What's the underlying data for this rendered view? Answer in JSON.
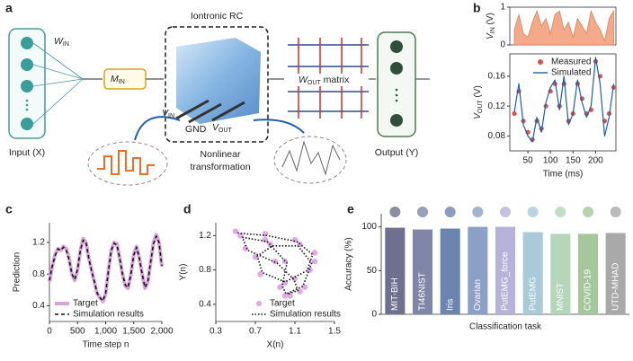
{
  "panel_labels": [
    "a",
    "b",
    "c",
    "d",
    "e"
  ],
  "diagram": {
    "w_in": [
      "W",
      "IN"
    ],
    "m_in": [
      "M",
      "IN"
    ],
    "reservoir_title": "Iontronic RC",
    "w_out": [
      "W",
      "OUT",
      " matrix"
    ],
    "v_in": [
      "V",
      "IN"
    ],
    "gnd": "GND",
    "v_out": [
      "V",
      "OUT"
    ],
    "transformation": [
      "Nonlinear",
      "transformation"
    ],
    "input_label": "Input (X)",
    "output_label": "Output (Y)"
  },
  "chart_data": [
    {
      "type": "area",
      "y_label": [
        "V",
        "IN",
        " (V)"
      ],
      "x": [
        20,
        30,
        40,
        50,
        60,
        70,
        80,
        90,
        100,
        110,
        120,
        130,
        140,
        150,
        160,
        170,
        180,
        190,
        200,
        210,
        220,
        230,
        240
      ],
      "values": [
        0.4,
        0.8,
        0.3,
        0.2,
        0.6,
        0.9,
        0.5,
        0.7,
        0.3,
        0.8,
        0.9,
        0.4,
        0.6,
        0.2,
        0.7,
        0.5,
        0.3,
        0.9,
        0.6,
        0.4,
        0.1,
        0.7,
        0.9
      ],
      "color": "#f3a98a",
      "xlim": [
        10,
        245
      ],
      "ylim": [
        0,
        1
      ],
      "yticks": [
        0,
        1
      ],
      "frame": true
    },
    {
      "type": "line",
      "x_label": "Time (ms)",
      "y_label": [
        "V",
        "OUT",
        " (V)"
      ],
      "x": [
        20,
        30,
        40,
        50,
        60,
        70,
        80,
        90,
        100,
        110,
        120,
        130,
        140,
        150,
        160,
        170,
        180,
        190,
        200,
        210,
        220,
        230,
        240
      ],
      "series": [
        {
          "name": "Measured",
          "color": "#d9534f",
          "mode": "markers",
          "values": [
            0.11,
            0.14,
            0.1,
            0.085,
            0.075,
            0.1,
            0.09,
            0.12,
            0.14,
            0.15,
            0.12,
            0.15,
            0.1,
            0.11,
            0.15,
            0.13,
            0.11,
            0.115,
            0.18,
            0.16,
            0.1,
            0.11,
            0.145
          ]
        },
        {
          "name": "Simulated",
          "color": "#1f5fa8",
          "mode": "line",
          "values": [
            0.112,
            0.15,
            0.095,
            0.08,
            0.072,
            0.105,
            0.085,
            0.125,
            0.145,
            0.155,
            0.115,
            0.16,
            0.095,
            0.11,
            0.155,
            0.125,
            0.105,
            0.12,
            0.185,
            0.15,
            0.08,
            0.105,
            0.15
          ]
        }
      ],
      "xlim": [
        10,
        245
      ],
      "ylim": [
        0.06,
        0.19
      ],
      "xticks": [
        50,
        100,
        150,
        200
      ],
      "yticks": [
        0.08,
        0.12,
        0.16
      ],
      "frame": true,
      "legend": "upper right"
    },
    {
      "type": "line",
      "x_label": "Time step n",
      "y_label": "Prediction",
      "x": [
        0,
        50,
        100,
        150,
        200,
        250,
        300,
        350,
        400,
        450,
        500,
        550,
        600,
        650,
        700,
        750,
        800,
        850,
        900,
        950,
        1000,
        1050,
        1100,
        1150,
        1200,
        1250,
        1300,
        1350,
        1400,
        1450,
        1500,
        1550,
        1600,
        1650,
        1700,
        1750,
        1800,
        1850,
        1900,
        1950,
        2000
      ],
      "series": [
        {
          "name": "Target",
          "color": "#d9a3dc",
          "mode": "line",
          "width": 4,
          "values": [
            0.7,
            0.9,
            1.05,
            1.12,
            1.1,
            1.15,
            1.12,
            1.0,
            0.8,
            0.72,
            0.85,
            1.1,
            1.25,
            1.2,
            1.0,
            0.85,
            0.7,
            0.55,
            0.5,
            0.45,
            0.55,
            0.85,
            1.1,
            1.2,
            1.18,
            1.0,
            0.8,
            0.65,
            0.62,
            0.8,
            1.05,
            1.15,
            1.0,
            0.8,
            0.62,
            0.7,
            0.95,
            1.2,
            1.3,
            1.2,
            0.9
          ]
        },
        {
          "name": "Simulation results",
          "color": "#111111",
          "mode": "line",
          "width": 1.6,
          "dash": "4 3",
          "values": [
            0.72,
            0.9,
            1.03,
            1.12,
            1.1,
            1.14,
            1.1,
            0.98,
            0.8,
            0.73,
            0.86,
            1.1,
            1.23,
            1.2,
            1.0,
            0.84,
            0.7,
            0.56,
            0.5,
            0.46,
            0.56,
            0.84,
            1.1,
            1.19,
            1.17,
            1.0,
            0.8,
            0.66,
            0.63,
            0.8,
            1.04,
            1.14,
            1.0,
            0.8,
            0.63,
            0.7,
            0.95,
            1.18,
            1.28,
            1.2,
            0.9
          ]
        }
      ],
      "xlim": [
        0,
        2000
      ],
      "ylim": [
        0.2,
        1.45
      ],
      "xticks": [
        0,
        500,
        {
          "value": 1000,
          "label": "1,000"
        },
        {
          "value": 1500,
          "label": "1,500"
        },
        {
          "value": 2000,
          "label": "2,000"
        }
      ],
      "yticks": [
        0.4,
        0.8,
        1.2
      ],
      "legend": "lower left"
    },
    {
      "type": "line",
      "x_label": "X(n)",
      "y_label": "Y(n)",
      "series": [
        {
          "name": "Target",
          "color": "#e3a6e6",
          "mode": "markers",
          "x": [
            0.5,
            0.8,
            1.1,
            1.3,
            1.25,
            1.0,
            0.75,
            0.7,
            0.85,
            1.15,
            1.3,
            1.2,
            1.0,
            0.95,
            1.0,
            0.8,
            0.55,
            0.6,
            0.9,
            1.1,
            1.15,
            1.05
          ],
          "values": [
            1.25,
            1.22,
            1.15,
            1.0,
            0.8,
            0.65,
            0.75,
            0.95,
            1.1,
            1.1,
            0.9,
            0.6,
            0.5,
            0.6,
            0.9,
            1.15,
            1.2,
            1.05,
            0.9,
            0.7,
            0.55,
            0.5
          ]
        },
        {
          "name": "Simulation results",
          "color": "#111111",
          "mode": "line",
          "width": 1.6,
          "dash": "1.5 2",
          "x": [
            0.52,
            0.82,
            1.12,
            1.28,
            1.22,
            1.0,
            0.77,
            0.72,
            0.87,
            1.13,
            1.27,
            1.18,
            1.01,
            0.97,
            1.02,
            0.82,
            0.57,
            0.62,
            0.92,
            1.09,
            1.13,
            1.03
          ],
          "values": [
            1.23,
            1.2,
            1.13,
            0.98,
            0.79,
            0.66,
            0.77,
            0.96,
            1.08,
            1.08,
            0.88,
            0.61,
            0.52,
            0.62,
            0.88,
            1.13,
            1.18,
            1.03,
            0.88,
            0.69,
            0.56,
            0.52
          ]
        }
      ],
      "xlim": [
        0.3,
        1.5
      ],
      "ylim": [
        0.2,
        1.35
      ],
      "xticks": [
        0.3,
        0.7,
        1.1,
        1.5
      ],
      "yticks": [
        0.4,
        0.8,
        1.2
      ],
      "legend": "lower right"
    },
    {
      "type": "bar",
      "x_label": "Classification task",
      "y_label": "Accuracy (%)",
      "categories": [
        "MIT-BIH",
        "TI46NIST",
        "Iris",
        "Ovarian",
        "PutEMG_force",
        "PutEMG",
        "MNIST",
        "COVID-19",
        "UTD-MHAD"
      ],
      "values": [
        99,
        97,
        98,
        100,
        100,
        94,
        92,
        92,
        93
      ],
      "colors": [
        "#6f6f8f",
        "#7f86a8",
        "#6b84b0",
        "#8aa0c6",
        "#b6b2d9",
        "#a9cad9",
        "#b5d6b8",
        "#a4c79b",
        "#a9a9a9"
      ],
      "ylim": [
        0,
        115
      ],
      "yticks": [
        0,
        50,
        100
      ]
    }
  ]
}
